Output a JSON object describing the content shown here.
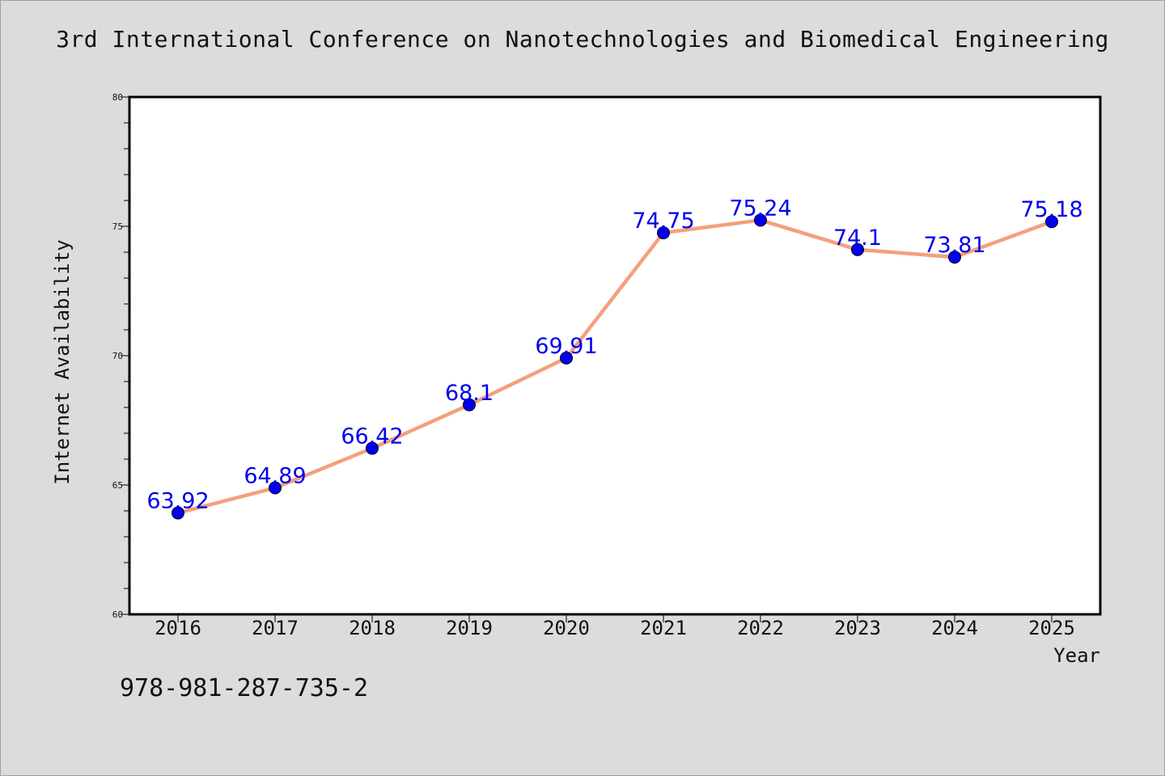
{
  "title": "3rd International Conference on Nanotechnologies and Biomedical Engineering",
  "isbn": "978-981-287-735-2",
  "chart_data": {
    "type": "line",
    "title": "3rd International Conference on Nanotechnologies and Biomedical Engineering",
    "xlabel": "Year",
    "ylabel": "Internet Availability",
    "categories": [
      "2016",
      "2017",
      "2018",
      "2019",
      "2020",
      "2021",
      "2022",
      "2023",
      "2024",
      "2025"
    ],
    "values": [
      63.92,
      64.89,
      66.42,
      68.1,
      69.91,
      74.75,
      75.24,
      74.1,
      73.81,
      75.18
    ],
    "data_labels": [
      "63.92",
      "64.89",
      "66.42",
      "68.1",
      "69.91",
      "74.75",
      "75.24",
      "74.1",
      "73.81",
      "75.18"
    ],
    "ylim": [
      60,
      80
    ],
    "yticks": [
      60,
      65,
      70,
      75,
      80
    ],
    "grid": false,
    "line_color": "#f4a07c",
    "marker_color": "#0000ee",
    "label_color": "#0000ee"
  }
}
